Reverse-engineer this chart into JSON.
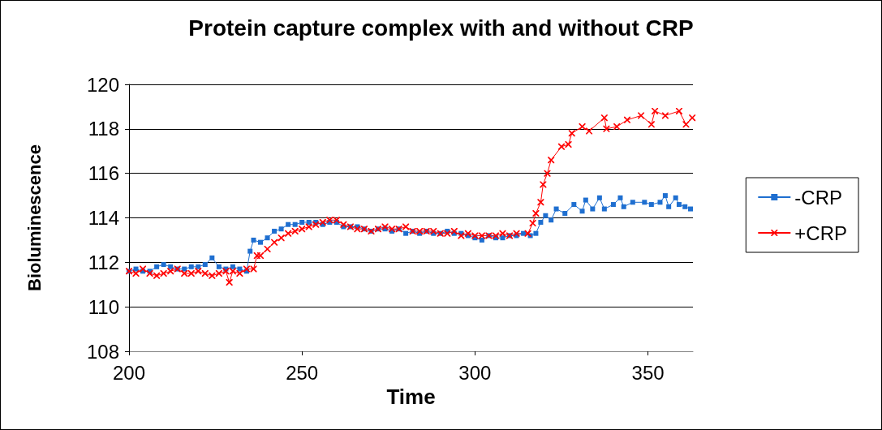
{
  "chart_data": {
    "type": "line",
    "title": "Protein capture complex with and without CRP",
    "xlabel": "Time",
    "ylabel": "Bioluminescence",
    "xlim": [
      200,
      363
    ],
    "xticks": [
      200,
      250,
      300,
      350
    ],
    "ylim": [
      108,
      120
    ],
    "yticks": [
      108,
      110,
      112,
      114,
      116,
      118,
      120
    ],
    "grid": "y",
    "legend": "right",
    "series": [
      {
        "name": "-CRP",
        "color": "#1f6fd0",
        "marker": "square",
        "x": [
          200,
          202,
          204,
          206,
          208,
          210,
          212,
          214,
          216,
          218,
          220,
          222,
          224,
          226,
          228,
          230,
          232,
          234,
          235,
          236,
          238,
          240,
          242,
          244,
          246,
          248,
          250,
          252,
          254,
          256,
          258,
          260,
          262,
          264,
          266,
          268,
          270,
          272,
          274,
          276,
          278,
          280,
          282,
          284,
          286,
          288,
          290,
          292,
          294,
          296,
          298,
          300,
          302,
          304,
          306,
          308,
          310,
          312,
          314,
          316,
          317.6,
          319,
          320.4,
          322,
          323.5,
          326,
          328.6,
          331,
          332,
          334,
          336,
          337.4,
          340,
          342,
          343,
          345.6,
          349,
          351,
          353.5,
          355,
          356,
          358,
          359,
          360.7,
          362.3
        ],
        "values": [
          111.6,
          111.7,
          111.6,
          111.6,
          111.8,
          111.9,
          111.8,
          111.7,
          111.7,
          111.8,
          111.8,
          111.9,
          112.2,
          111.8,
          111.7,
          111.8,
          111.7,
          111.6,
          112.5,
          113.0,
          112.9,
          113.1,
          113.4,
          113.5,
          113.7,
          113.7,
          113.8,
          113.8,
          113.8,
          113.7,
          113.8,
          113.8,
          113.6,
          113.6,
          113.6,
          113.5,
          113.4,
          113.5,
          113.5,
          113.4,
          113.5,
          113.3,
          113.4,
          113.3,
          113.4,
          113.3,
          113.3,
          113.4,
          113.3,
          113.3,
          113.2,
          113.1,
          113.0,
          113.2,
          113.1,
          113.1,
          113.2,
          113.2,
          113.3,
          113.2,
          113.3,
          113.8,
          114.1,
          113.9,
          114.4,
          114.2,
          114.6,
          114.3,
          114.8,
          114.4,
          114.9,
          114.4,
          114.6,
          114.9,
          114.5,
          114.7,
          114.7,
          114.6,
          114.7,
          115.0,
          114.5,
          114.9,
          114.6,
          114.5,
          114.4
        ]
      },
      {
        "name": "+CRP",
        "color": "#ff0000",
        "marker": "cross",
        "x": [
          200,
          202,
          204,
          206,
          208,
          210,
          212,
          214,
          216,
          218,
          220,
          222,
          224,
          226,
          228,
          229,
          230,
          232,
          234,
          236,
          237,
          238,
          240,
          242,
          244,
          246,
          248,
          250,
          252,
          254,
          256,
          258,
          260,
          262,
          264,
          266,
          268,
          270,
          272,
          274,
          276,
          278,
          280,
          282,
          284,
          286,
          288,
          290,
          292,
          294,
          296,
          298,
          300,
          302,
          304,
          306,
          308,
          310,
          312,
          315.3,
          316.7,
          317.6,
          319,
          319.7,
          320.9,
          322,
          325,
          327,
          328,
          331,
          333,
          337.4,
          338,
          341,
          344,
          348,
          351,
          352,
          355,
          359,
          361,
          362.8
        ],
        "values": [
          111.6,
          111.5,
          111.7,
          111.5,
          111.4,
          111.5,
          111.6,
          111.7,
          111.5,
          111.5,
          111.6,
          111.5,
          111.4,
          111.5,
          111.6,
          111.1,
          111.6,
          111.5,
          111.7,
          111.7,
          112.3,
          112.3,
          112.6,
          112.9,
          113.1,
          113.3,
          113.4,
          113.5,
          113.6,
          113.7,
          113.8,
          113.9,
          113.9,
          113.7,
          113.6,
          113.5,
          113.5,
          113.4,
          113.5,
          113.6,
          113.5,
          113.5,
          113.6,
          113.4,
          113.4,
          113.4,
          113.4,
          113.3,
          113.3,
          113.4,
          113.2,
          113.3,
          113.2,
          113.2,
          113.2,
          113.2,
          113.3,
          113.2,
          113.3,
          113.3,
          113.76,
          114.2,
          114.7,
          115.5,
          116.0,
          116.6,
          117.2,
          117.3,
          117.8,
          118.1,
          117.9,
          118.5,
          118.0,
          118.1,
          118.4,
          118.6,
          118.2,
          118.8,
          118.6,
          118.8,
          118.2,
          118.5
        ]
      }
    ]
  }
}
